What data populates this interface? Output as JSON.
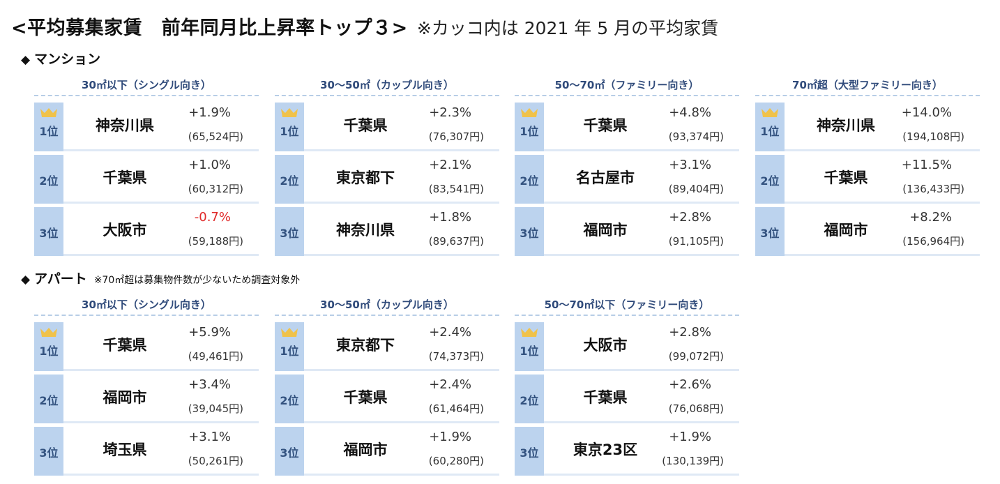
{
  "title": {
    "main": "<平均募集家賃　前年同月比上昇率トップ３>",
    "note": "※カッコ内は 2021 年 5 月の平均家賃"
  },
  "sections": [
    {
      "label": "マンション",
      "note": "",
      "panels": [
        {
          "header": "30㎡以下（シングル向き）",
          "rows": [
            {
              "rank": "1位",
              "city": "神奈川県",
              "pct": "+1.9%",
              "rent": "(65,524円)"
            },
            {
              "rank": "2位",
              "city": "千葉県",
              "pct": "+1.0%",
              "rent": "(60,312円)"
            },
            {
              "rank": "3位",
              "city": "大阪市",
              "pct": "-0.7%",
              "rent": "(59,188円)",
              "negative": true
            }
          ]
        },
        {
          "header": "30～50㎡（カップル向き）",
          "rows": [
            {
              "rank": "1位",
              "city": "千葉県",
              "pct": "+2.3%",
              "rent": "(76,307円)"
            },
            {
              "rank": "2位",
              "city": "東京都下",
              "pct": "+2.1%",
              "rent": "(83,541円)"
            },
            {
              "rank": "3位",
              "city": "神奈川県",
              "pct": "+1.8%",
              "rent": "(89,637円)"
            }
          ]
        },
        {
          "header": "50～70㎡（ファミリー向き）",
          "rows": [
            {
              "rank": "1位",
              "city": "千葉県",
              "pct": "+4.8%",
              "rent": "(93,374円)"
            },
            {
              "rank": "2位",
              "city": "名古屋市",
              "pct": "+3.1%",
              "rent": "(89,404円)"
            },
            {
              "rank": "3位",
              "city": "福岡市",
              "pct": "+2.8%",
              "rent": "(91,105円)"
            }
          ]
        },
        {
          "header": "70㎡超（大型ファミリー向き）",
          "rows": [
            {
              "rank": "1位",
              "city": "神奈川県",
              "pct": "+14.0%",
              "rent": "(194,108円)"
            },
            {
              "rank": "2位",
              "city": "千葉県",
              "pct": "+11.5%",
              "rent": "(136,433円)"
            },
            {
              "rank": "3位",
              "city": "福岡市",
              "pct": "+8.2%",
              "rent": "(156,964円)"
            }
          ]
        }
      ]
    },
    {
      "label": "アパート",
      "note": "※70㎡超は募集物件数が少ないため調査対象外",
      "panels": [
        {
          "header": "30㎡以下（シングル向き）",
          "rows": [
            {
              "rank": "1位",
              "city": "千葉県",
              "pct": "+5.9%",
              "rent": "(49,461円)"
            },
            {
              "rank": "2位",
              "city": "福岡市",
              "pct": "+3.4%",
              "rent": "(39,045円)"
            },
            {
              "rank": "3位",
              "city": "埼玉県",
              "pct": "+3.1%",
              "rent": "(50,261円)"
            }
          ]
        },
        {
          "header": "30～50㎡（カップル向き）",
          "rows": [
            {
              "rank": "1位",
              "city": "東京都下",
              "pct": "+2.4%",
              "rent": "(74,373円)"
            },
            {
              "rank": "2位",
              "city": "千葉県",
              "pct": "+2.4%",
              "rent": "(61,464円)"
            },
            {
              "rank": "3位",
              "city": "福岡市",
              "pct": "+1.9%",
              "rent": "(60,280円)"
            }
          ]
        },
        {
          "header": "50～70㎡以下（ファミリー向き）",
          "rows": [
            {
              "rank": "1位",
              "city": "大阪市",
              "pct": "+2.8%",
              "rent": "(99,072円)"
            },
            {
              "rank": "2位",
              "city": "千葉県",
              "pct": "+2.6%",
              "rent": "(76,068円)"
            },
            {
              "rank": "3位",
              "city": "東京23区",
              "pct": "+1.9%",
              "rent": "(130,139円)"
            }
          ]
        }
      ]
    }
  ],
  "colors": {
    "rank_cell": "#bcd3ee",
    "row_bg": "#dfe9f5",
    "header_text": "#2f4a7a",
    "rank_text": "#33527f",
    "crown": "#f0c24a",
    "negative": "#e02a2a"
  },
  "icons": {
    "first_place": "crown-icon",
    "section_marker": "diamond-icon"
  }
}
